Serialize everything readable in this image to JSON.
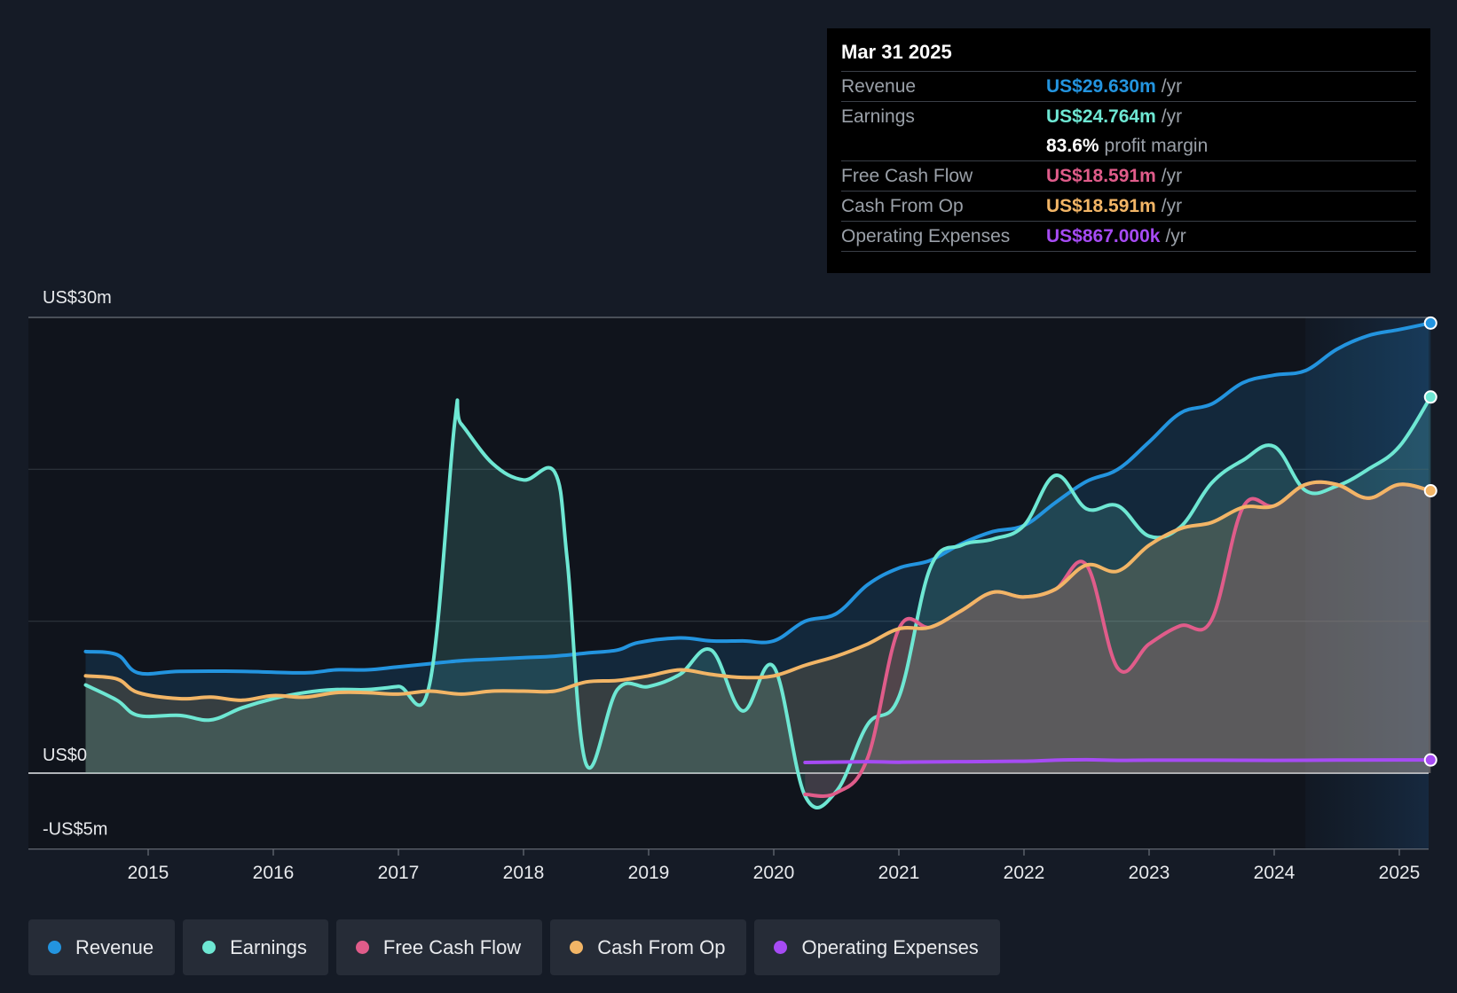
{
  "tooltip": {
    "date": "Mar 31 2025",
    "rows": [
      {
        "name": "Revenue",
        "value": "US$29.630m",
        "unit": "/yr",
        "color": "#2394df"
      },
      {
        "name": "Earnings",
        "value": "US$24.764m",
        "unit": "/yr",
        "color": "#6ee7d3"
      },
      {
        "name": "",
        "value": "83.6%",
        "unit": "profit margin",
        "color": "#ffffff"
      },
      {
        "name": "Free Cash Flow",
        "value": "US$18.591m",
        "unit": "/yr",
        "color": "#e05c8a"
      },
      {
        "name": "Cash From Op",
        "value": "US$18.591m",
        "unit": "/yr",
        "color": "#f2b566"
      },
      {
        "name": "Operating Expenses",
        "value": "US$867.000k",
        "unit": "/yr",
        "color": "#a64bf4"
      }
    ]
  },
  "legend": [
    {
      "label": "Revenue",
      "color": "#2394df"
    },
    {
      "label": "Earnings",
      "color": "#6ee7d3"
    },
    {
      "label": "Free Cash Flow",
      "color": "#e05c8a"
    },
    {
      "label": "Cash From Op",
      "color": "#f2b566"
    },
    {
      "label": "Operating Expenses",
      "color": "#a64bf4"
    }
  ],
  "chart_data": {
    "type": "area",
    "title": "",
    "xlabel": "",
    "ylabel": "",
    "ylim": [
      -5,
      30
    ],
    "y_axis_labels": [
      {
        "value": 30,
        "label": "US$30m"
      },
      {
        "value": 0,
        "label": "US$0"
      },
      {
        "value": -5,
        "label": "-US$5m"
      }
    ],
    "gridlines": [
      30,
      20,
      10,
      0,
      -5
    ],
    "xlim": [
      2014.5,
      2025.25
    ],
    "x_ticks": [
      2015,
      2016,
      2017,
      2018,
      2019,
      2020,
      2021,
      2022,
      2023,
      2024,
      2025
    ],
    "x_tick_labels": [
      "2015",
      "2016",
      "2017",
      "2018",
      "2019",
      "2020",
      "2021",
      "2022",
      "2023",
      "2024",
      "2025"
    ],
    "forecast_start": 2024.25,
    "series": [
      {
        "name": "Revenue",
        "color": "#2394df",
        "fill": true,
        "end_marker": true,
        "points": [
          [
            2014.5,
            8.0
          ],
          [
            2014.75,
            7.8
          ],
          [
            2014.92,
            6.6
          ],
          [
            2015.25,
            6.7
          ],
          [
            2015.75,
            6.7
          ],
          [
            2016.25,
            6.6
          ],
          [
            2016.5,
            6.8
          ],
          [
            2016.75,
            6.8
          ],
          [
            2017.0,
            7.0
          ],
          [
            2017.25,
            7.2
          ],
          [
            2017.5,
            7.4
          ],
          [
            2017.75,
            7.5
          ],
          [
            2018.0,
            7.6
          ],
          [
            2018.25,
            7.7
          ],
          [
            2018.5,
            7.9
          ],
          [
            2018.75,
            8.1
          ],
          [
            2018.92,
            8.6
          ],
          [
            2019.25,
            8.9
          ],
          [
            2019.5,
            8.7
          ],
          [
            2019.75,
            8.7
          ],
          [
            2020.0,
            8.7
          ],
          [
            2020.25,
            10.0
          ],
          [
            2020.5,
            10.5
          ],
          [
            2020.75,
            12.4
          ],
          [
            2021.0,
            13.5
          ],
          [
            2021.25,
            14.0
          ],
          [
            2021.5,
            15.1
          ],
          [
            2021.75,
            15.9
          ],
          [
            2022.0,
            16.3
          ],
          [
            2022.25,
            17.8
          ],
          [
            2022.5,
            19.2
          ],
          [
            2022.75,
            20.0
          ],
          [
            2023.0,
            21.8
          ],
          [
            2023.25,
            23.7
          ],
          [
            2023.5,
            24.3
          ],
          [
            2023.75,
            25.7
          ],
          [
            2024.0,
            26.2
          ],
          [
            2024.25,
            26.5
          ],
          [
            2024.5,
            27.9
          ],
          [
            2024.75,
            28.8
          ],
          [
            2025.0,
            29.2
          ],
          [
            2025.25,
            29.63
          ]
        ]
      },
      {
        "name": "Earnings",
        "color": "#6ee7d3",
        "fill": true,
        "end_marker": true,
        "points": [
          [
            2014.5,
            5.8
          ],
          [
            2014.75,
            4.8
          ],
          [
            2014.92,
            3.8
          ],
          [
            2015.25,
            3.8
          ],
          [
            2015.5,
            3.5
          ],
          [
            2015.75,
            4.3
          ],
          [
            2016.0,
            4.9
          ],
          [
            2016.25,
            5.3
          ],
          [
            2016.5,
            5.5
          ],
          [
            2016.75,
            5.5
          ],
          [
            2017.0,
            5.7
          ],
          [
            2017.25,
            5.9
          ],
          [
            2017.45,
            23.1
          ],
          [
            2017.5,
            23.0
          ],
          [
            2017.75,
            20.4
          ],
          [
            2018.0,
            19.3
          ],
          [
            2018.25,
            19.8
          ],
          [
            2018.35,
            14.0
          ],
          [
            2018.5,
            0.6
          ],
          [
            2018.75,
            5.5
          ],
          [
            2019.0,
            5.7
          ],
          [
            2019.25,
            6.5
          ],
          [
            2019.5,
            8.1
          ],
          [
            2019.75,
            4.1
          ],
          [
            2020.0,
            7.0
          ],
          [
            2020.25,
            -1.5
          ],
          [
            2020.5,
            -1.2
          ],
          [
            2020.75,
            3.2
          ],
          [
            2021.0,
            5.0
          ],
          [
            2021.25,
            13.5
          ],
          [
            2021.5,
            15.0
          ],
          [
            2021.75,
            15.4
          ],
          [
            2022.0,
            16.3
          ],
          [
            2022.25,
            19.6
          ],
          [
            2022.5,
            17.4
          ],
          [
            2022.75,
            17.6
          ],
          [
            2023.0,
            15.6
          ],
          [
            2023.25,
            16.2
          ],
          [
            2023.5,
            19.1
          ],
          [
            2023.75,
            20.6
          ],
          [
            2024.0,
            21.5
          ],
          [
            2024.25,
            18.6
          ],
          [
            2024.5,
            18.9
          ],
          [
            2024.75,
            20.0
          ],
          [
            2025.0,
            21.5
          ],
          [
            2025.25,
            24.76
          ]
        ]
      },
      {
        "name": "Free Cash Flow",
        "color": "#e05c8a",
        "fill": true,
        "end_marker": false,
        "points": [
          [
            2020.25,
            -1.4
          ],
          [
            2020.5,
            -1.3
          ],
          [
            2020.75,
            1.0
          ],
          [
            2021.0,
            9.5
          ],
          [
            2021.25,
            9.6
          ],
          [
            2021.5,
            10.7
          ],
          [
            2021.75,
            11.9
          ],
          [
            2022.0,
            11.6
          ],
          [
            2022.25,
            12.1
          ],
          [
            2022.5,
            13.7
          ],
          [
            2022.75,
            6.9
          ],
          [
            2023.0,
            8.5
          ],
          [
            2023.25,
            9.7
          ],
          [
            2023.5,
            10.1
          ],
          [
            2023.75,
            17.5
          ],
          [
            2024.0,
            17.6
          ],
          [
            2024.25,
            19.0
          ],
          [
            2024.5,
            19.0
          ],
          [
            2024.75,
            18.1
          ],
          [
            2025.0,
            19.0
          ],
          [
            2025.25,
            18.59
          ]
        ]
      },
      {
        "name": "Cash From Op",
        "color": "#f2b566",
        "fill": true,
        "end_marker": true,
        "points": [
          [
            2014.5,
            6.4
          ],
          [
            2014.75,
            6.2
          ],
          [
            2014.92,
            5.3
          ],
          [
            2015.25,
            4.9
          ],
          [
            2015.5,
            5.0
          ],
          [
            2015.75,
            4.8
          ],
          [
            2016.0,
            5.1
          ],
          [
            2016.25,
            5.0
          ],
          [
            2016.5,
            5.3
          ],
          [
            2016.75,
            5.3
          ],
          [
            2017.0,
            5.2
          ],
          [
            2017.25,
            5.4
          ],
          [
            2017.5,
            5.2
          ],
          [
            2017.75,
            5.4
          ],
          [
            2018.0,
            5.4
          ],
          [
            2018.25,
            5.4
          ],
          [
            2018.5,
            6.0
          ],
          [
            2018.75,
            6.1
          ],
          [
            2019.0,
            6.4
          ],
          [
            2019.25,
            6.8
          ],
          [
            2019.5,
            6.5
          ],
          [
            2019.75,
            6.3
          ],
          [
            2020.0,
            6.4
          ],
          [
            2020.25,
            7.1
          ],
          [
            2020.5,
            7.7
          ],
          [
            2020.75,
            8.5
          ],
          [
            2021.0,
            9.5
          ],
          [
            2021.25,
            9.6
          ],
          [
            2021.5,
            10.7
          ],
          [
            2021.75,
            11.9
          ],
          [
            2022.0,
            11.6
          ],
          [
            2022.25,
            12.1
          ],
          [
            2022.5,
            13.7
          ],
          [
            2022.75,
            13.3
          ],
          [
            2023.0,
            15.0
          ],
          [
            2023.25,
            16.1
          ],
          [
            2023.5,
            16.5
          ],
          [
            2023.75,
            17.5
          ],
          [
            2024.0,
            17.6
          ],
          [
            2024.25,
            19.0
          ],
          [
            2024.5,
            19.0
          ],
          [
            2024.75,
            18.1
          ],
          [
            2025.0,
            19.0
          ],
          [
            2025.25,
            18.59
          ]
        ]
      },
      {
        "name": "Operating Expenses",
        "color": "#a64bf4",
        "fill": false,
        "end_marker": true,
        "points": [
          [
            2020.25,
            0.7
          ],
          [
            2020.75,
            0.75
          ],
          [
            2021.0,
            0.72
          ],
          [
            2021.5,
            0.75
          ],
          [
            2022.0,
            0.78
          ],
          [
            2022.25,
            0.85
          ],
          [
            2022.5,
            0.88
          ],
          [
            2022.75,
            0.84
          ],
          [
            2023.0,
            0.85
          ],
          [
            2023.5,
            0.85
          ],
          [
            2024.0,
            0.84
          ],
          [
            2024.5,
            0.86
          ],
          [
            2025.0,
            0.87
          ],
          [
            2025.25,
            0.867
          ]
        ]
      }
    ]
  }
}
